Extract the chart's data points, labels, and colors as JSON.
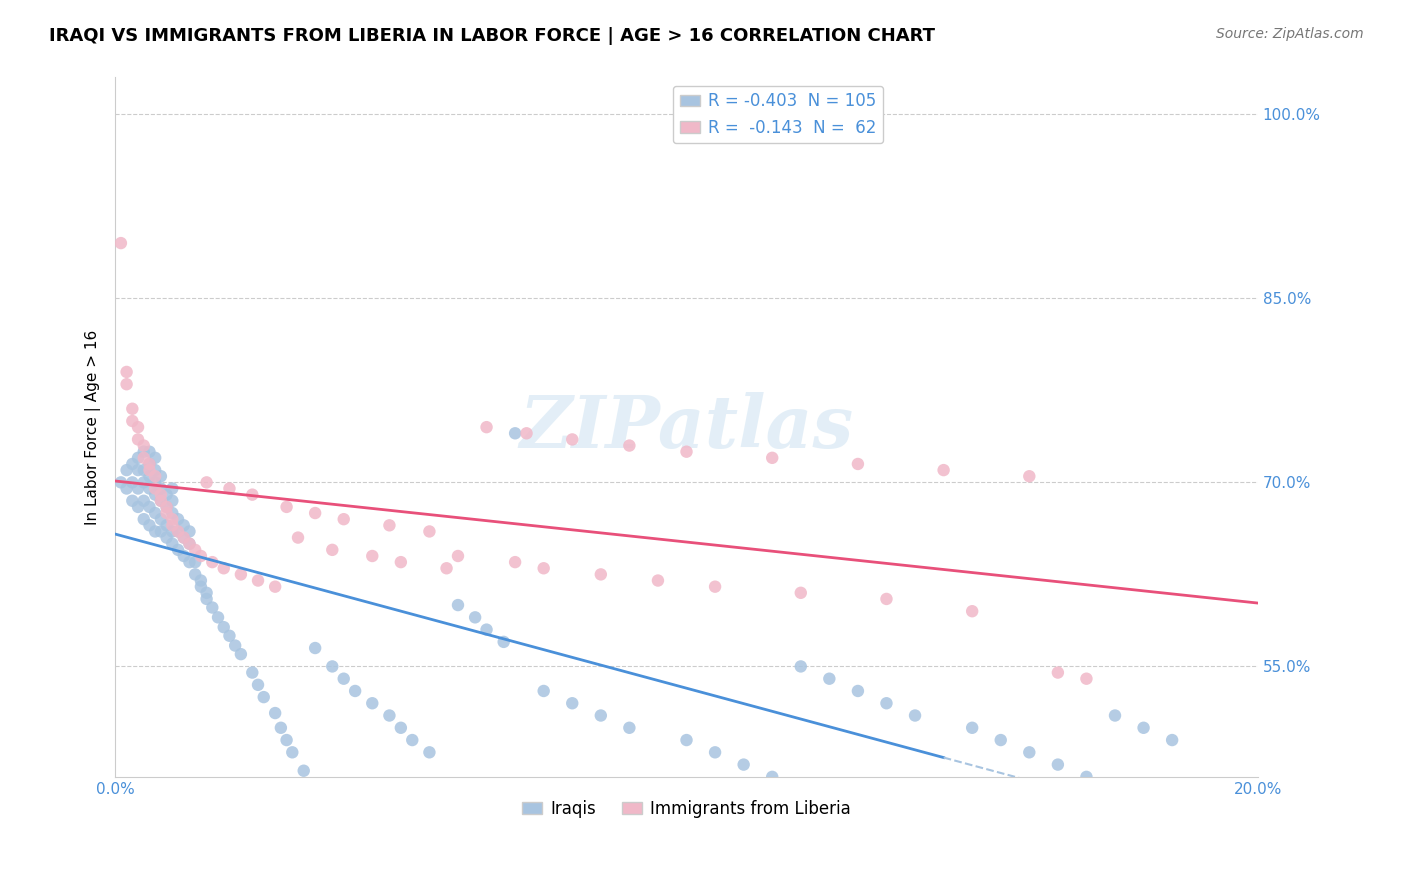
{
  "title": "IRAQI VS IMMIGRANTS FROM LIBERIA IN LABOR FORCE | AGE > 16 CORRELATION CHART",
  "source": "Source: ZipAtlas.com",
  "xlabel": "",
  "ylabel": "In Labor Force | Age > 16",
  "xlim": [
    0.0,
    0.2
  ],
  "ylim": [
    0.46,
    1.03
  ],
  "xtick_labels": [
    "0.0%",
    "20.0%"
  ],
  "ytick_labels": [
    "55.0%",
    "70.0%",
    "85.0%",
    "100.0%"
  ],
  "ytick_positions": [
    0.55,
    0.7,
    0.85,
    1.0
  ],
  "legend_R_iraqis": "-0.403",
  "legend_N_iraqis": "105",
  "legend_R_liberia": "-0.143",
  "legend_N_liberia": "62",
  "color_iraqis": "#a8c4e0",
  "color_liberia": "#f0b8c8",
  "color_trendline_iraqis": "#4a90d9",
  "color_trendline_liberia": "#e8507a",
  "color_trendline_iraqis_dashed": "#a8c4e0",
  "watermark": "ZIPatlas",
  "iraqis_x": [
    0.001,
    0.002,
    0.002,
    0.003,
    0.003,
    0.003,
    0.004,
    0.004,
    0.004,
    0.004,
    0.005,
    0.005,
    0.005,
    0.005,
    0.005,
    0.006,
    0.006,
    0.006,
    0.006,
    0.006,
    0.006,
    0.007,
    0.007,
    0.007,
    0.007,
    0.007,
    0.007,
    0.008,
    0.008,
    0.008,
    0.008,
    0.008,
    0.009,
    0.009,
    0.009,
    0.009,
    0.01,
    0.01,
    0.01,
    0.01,
    0.01,
    0.011,
    0.011,
    0.011,
    0.012,
    0.012,
    0.012,
    0.013,
    0.013,
    0.013,
    0.014,
    0.014,
    0.015,
    0.015,
    0.016,
    0.016,
    0.017,
    0.018,
    0.019,
    0.02,
    0.021,
    0.022,
    0.024,
    0.025,
    0.026,
    0.028,
    0.029,
    0.03,
    0.031,
    0.033,
    0.035,
    0.038,
    0.04,
    0.042,
    0.045,
    0.048,
    0.05,
    0.052,
    0.055,
    0.06,
    0.063,
    0.065,
    0.068,
    0.07,
    0.075,
    0.08,
    0.085,
    0.09,
    0.1,
    0.105,
    0.11,
    0.115,
    0.12,
    0.125,
    0.13,
    0.135,
    0.14,
    0.15,
    0.155,
    0.16,
    0.165,
    0.17,
    0.175,
    0.18,
    0.185
  ],
  "iraqis_y": [
    0.7,
    0.695,
    0.71,
    0.685,
    0.7,
    0.715,
    0.68,
    0.695,
    0.71,
    0.72,
    0.67,
    0.685,
    0.7,
    0.71,
    0.725,
    0.665,
    0.68,
    0.695,
    0.705,
    0.715,
    0.725,
    0.66,
    0.675,
    0.69,
    0.7,
    0.71,
    0.72,
    0.66,
    0.67,
    0.685,
    0.695,
    0.705,
    0.655,
    0.665,
    0.68,
    0.69,
    0.65,
    0.66,
    0.675,
    0.685,
    0.695,
    0.645,
    0.66,
    0.67,
    0.64,
    0.655,
    0.665,
    0.635,
    0.65,
    0.66,
    0.625,
    0.635,
    0.615,
    0.62,
    0.605,
    0.61,
    0.598,
    0.59,
    0.582,
    0.575,
    0.567,
    0.56,
    0.545,
    0.535,
    0.525,
    0.512,
    0.5,
    0.49,
    0.48,
    0.465,
    0.565,
    0.55,
    0.54,
    0.53,
    0.52,
    0.51,
    0.5,
    0.49,
    0.48,
    0.6,
    0.59,
    0.58,
    0.57,
    0.74,
    0.53,
    0.52,
    0.51,
    0.5,
    0.49,
    0.48,
    0.47,
    0.46,
    0.55,
    0.54,
    0.53,
    0.52,
    0.51,
    0.5,
    0.49,
    0.48,
    0.47,
    0.46,
    0.51,
    0.5,
    0.49
  ],
  "liberia_x": [
    0.001,
    0.002,
    0.002,
    0.003,
    0.003,
    0.004,
    0.004,
    0.005,
    0.005,
    0.006,
    0.006,
    0.007,
    0.007,
    0.008,
    0.008,
    0.009,
    0.009,
    0.01,
    0.01,
    0.011,
    0.012,
    0.013,
    0.014,
    0.015,
    0.017,
    0.019,
    0.022,
    0.025,
    0.028,
    0.032,
    0.038,
    0.045,
    0.05,
    0.058,
    0.065,
    0.072,
    0.08,
    0.09,
    0.1,
    0.115,
    0.13,
    0.145,
    0.16,
    0.016,
    0.02,
    0.024,
    0.03,
    0.035,
    0.04,
    0.048,
    0.055,
    0.06,
    0.07,
    0.075,
    0.085,
    0.095,
    0.105,
    0.12,
    0.135,
    0.15,
    0.165,
    0.17
  ],
  "liberia_y": [
    0.895,
    0.79,
    0.78,
    0.76,
    0.75,
    0.745,
    0.735,
    0.73,
    0.72,
    0.715,
    0.71,
    0.705,
    0.695,
    0.69,
    0.685,
    0.68,
    0.675,
    0.67,
    0.665,
    0.66,
    0.655,
    0.65,
    0.645,
    0.64,
    0.635,
    0.63,
    0.625,
    0.62,
    0.615,
    0.655,
    0.645,
    0.64,
    0.635,
    0.63,
    0.745,
    0.74,
    0.735,
    0.73,
    0.725,
    0.72,
    0.715,
    0.71,
    0.705,
    0.7,
    0.695,
    0.69,
    0.68,
    0.675,
    0.67,
    0.665,
    0.66,
    0.64,
    0.635,
    0.63,
    0.625,
    0.62,
    0.615,
    0.61,
    0.605,
    0.595,
    0.545,
    0.54
  ]
}
